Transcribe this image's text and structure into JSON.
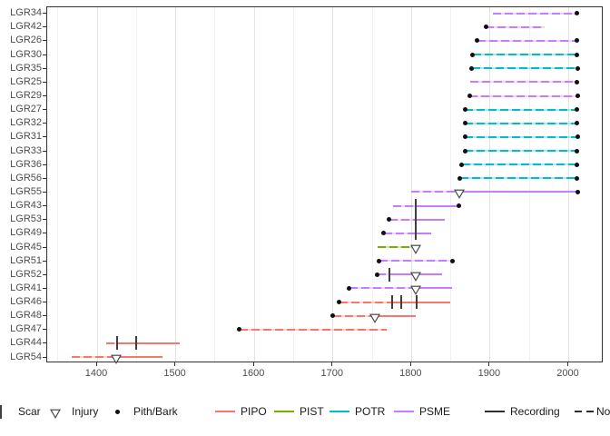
{
  "chart_data": {
    "type": "line",
    "subtype": "fire-history-demography",
    "title": "",
    "xlabel": "",
    "ylabel": "",
    "x_axis": {
      "breaks": [
        1400,
        1500,
        1600,
        1700,
        1800,
        1900,
        2000
      ],
      "labels": [
        "1400",
        "1500",
        "1600",
        "1700",
        "1800",
        "1900",
        "2000"
      ],
      "minor_step": 50,
      "range": [
        1336,
        2043
      ]
    },
    "species_colors": {
      "PIPO": "#F8766D",
      "PIST": "#7CAE00",
      "POTR": "#00BFC4",
      "PSME": "#C77CFF"
    },
    "marker_color": "#3f3f3f",
    "series": [
      {
        "label": "LGR34",
        "species": "PSME",
        "pith": null,
        "bark": 2011,
        "scars": [],
        "injuries": [],
        "segments": [
          {
            "start": 1905,
            "end": 2011,
            "recording": false
          }
        ]
      },
      {
        "label": "LGR42",
        "species": "PSME",
        "pith": 1896,
        "bark": null,
        "scars": [],
        "injuries": [],
        "segments": [
          {
            "start": 1896,
            "end": 1971,
            "recording": false
          }
        ]
      },
      {
        "label": "LGR26",
        "species": "PSME",
        "pith": 1885,
        "bark": 2011,
        "scars": [],
        "injuries": [],
        "segments": [
          {
            "start": 1885,
            "end": 2011,
            "recording": false
          }
        ]
      },
      {
        "label": "LGR30",
        "species": "POTR",
        "pith": 1879,
        "bark": 2011,
        "scars": [],
        "injuries": [],
        "segments": [
          {
            "start": 1879,
            "end": 2011,
            "recording": false
          }
        ]
      },
      {
        "label": "LGR35",
        "species": "POTR",
        "pith": 1878,
        "bark": 2013,
        "scars": [],
        "injuries": [],
        "segments": [
          {
            "start": 1878,
            "end": 2013,
            "recording": false
          }
        ]
      },
      {
        "label": "LGR25",
        "species": "PSME",
        "pith": null,
        "bark": 2011,
        "scars": [],
        "injuries": [],
        "segments": [
          {
            "start": 1876,
            "end": 2011,
            "recording": false
          }
        ]
      },
      {
        "label": "LGR29",
        "species": "PSME",
        "pith": 1875,
        "bark": 2013,
        "scars": [],
        "injuries": [],
        "segments": [
          {
            "start": 1875,
            "end": 2013,
            "recording": false
          }
        ]
      },
      {
        "label": "LGR27",
        "species": "POTR",
        "pith": 1869,
        "bark": 2011,
        "scars": [],
        "injuries": [],
        "segments": [
          {
            "start": 1869,
            "end": 2011,
            "recording": false
          }
        ]
      },
      {
        "label": "LGR32",
        "species": "POTR",
        "pith": 1869,
        "bark": 2011,
        "scars": [],
        "injuries": [],
        "segments": [
          {
            "start": 1869,
            "end": 2011,
            "recording": false
          }
        ]
      },
      {
        "label": "LGR31",
        "species": "POTR",
        "pith": 1869,
        "bark": 2013,
        "scars": [],
        "injuries": [],
        "segments": [
          {
            "start": 1869,
            "end": 2013,
            "recording": false
          }
        ]
      },
      {
        "label": "LGR33",
        "species": "POTR",
        "pith": 1869,
        "bark": 2011,
        "scars": [],
        "injuries": [],
        "segments": [
          {
            "start": 1869,
            "end": 2011,
            "recording": false
          }
        ]
      },
      {
        "label": "LGR36",
        "species": "POTR",
        "pith": 1865,
        "bark": 2011,
        "scars": [],
        "injuries": [],
        "segments": [
          {
            "start": 1865,
            "end": 2011,
            "recording": false
          }
        ]
      },
      {
        "label": "LGR56",
        "species": "POTR",
        "pith": 1863,
        "bark": 2011,
        "scars": [],
        "injuries": [],
        "segments": [
          {
            "start": 1863,
            "end": 2011,
            "recording": false
          }
        ]
      },
      {
        "label": "LGR55",
        "species": "PSME",
        "pith": null,
        "bark": 2013,
        "scars": [],
        "injuries": [
          1862
        ],
        "segments": [
          {
            "start": 1801,
            "end": 1862,
            "recording": false
          },
          {
            "start": 1862,
            "end": 2013,
            "recording": true
          }
        ]
      },
      {
        "label": "LGR43",
        "species": "PSME",
        "pith": null,
        "bark": 1861,
        "scars": [
          1807
        ],
        "injuries": [],
        "segments": [
          {
            "start": 1778,
            "end": 1807,
            "recording": false
          },
          {
            "start": 1807,
            "end": 1861,
            "recording": true
          }
        ]
      },
      {
        "label": "LGR53",
        "species": "PSME",
        "pith": 1773,
        "bark": null,
        "scars": [
          1807
        ],
        "injuries": [],
        "segments": [
          {
            "start": 1773,
            "end": 1807,
            "recording": false
          },
          {
            "start": 1807,
            "end": 1844,
            "recording": true
          }
        ]
      },
      {
        "label": "LGR49",
        "species": "PSME",
        "pith": 1766,
        "bark": null,
        "scars": [
          1807
        ],
        "injuries": [],
        "segments": [
          {
            "start": 1766,
            "end": 1807,
            "recording": false
          },
          {
            "start": 1807,
            "end": 1826,
            "recording": true
          }
        ]
      },
      {
        "label": "LGR45",
        "species": "PIST",
        "pith": null,
        "bark": null,
        "scars": [],
        "injuries": [
          1806
        ],
        "segments": [
          {
            "start": 1758,
            "end": 1806,
            "recording": false
          }
        ]
      },
      {
        "label": "LGR51",
        "species": "PSME",
        "pith": 1760,
        "bark": 1853,
        "scars": [],
        "injuries": [],
        "segments": [
          {
            "start": 1760,
            "end": 1853,
            "recording": false
          }
        ]
      },
      {
        "label": "LGR52",
        "species": "PSME",
        "pith": 1758,
        "bark": null,
        "scars": [
          1773
        ],
        "injuries": [
          1806
        ],
        "segments": [
          {
            "start": 1758,
            "end": 1773,
            "recording": false
          },
          {
            "start": 1773,
            "end": 1840,
            "recording": true
          }
        ]
      },
      {
        "label": "LGR41",
        "species": "PSME",
        "pith": 1722,
        "bark": null,
        "scars": [],
        "injuries": [
          1807
        ],
        "segments": [
          {
            "start": 1722,
            "end": 1807,
            "recording": false
          },
          {
            "start": 1807,
            "end": 1853,
            "recording": true
          }
        ]
      },
      {
        "label": "LGR46",
        "species": "PIPO",
        "pith": 1709,
        "bark": null,
        "scars": [
          1776,
          1788,
          1808
        ],
        "injuries": [],
        "segments": [
          {
            "start": 1709,
            "end": 1776,
            "recording": false
          },
          {
            "start": 1776,
            "end": 1851,
            "recording": true
          }
        ]
      },
      {
        "label": "LGR48",
        "species": "PIPO",
        "pith": 1701,
        "bark": null,
        "scars": [],
        "injuries": [
          1754
        ],
        "segments": [
          {
            "start": 1701,
            "end": 1754,
            "recording": false
          },
          {
            "start": 1754,
            "end": 1806,
            "recording": true
          }
        ]
      },
      {
        "label": "LGR47",
        "species": "PIPO",
        "pith": 1582,
        "bark": null,
        "scars": [],
        "injuries": [],
        "segments": [
          {
            "start": 1582,
            "end": 1770,
            "recording": false
          }
        ]
      },
      {
        "label": "LGR44",
        "species": "PIPO",
        "pith": null,
        "bark": null,
        "scars": [
          1426,
          1451
        ],
        "injuries": [],
        "segments": [
          {
            "start": 1413,
            "end": 1426,
            "recording": false
          },
          {
            "start": 1426,
            "end": 1506,
            "recording": true
          }
        ]
      },
      {
        "label": "LGR54",
        "species": "PIPO",
        "pith": null,
        "bark": null,
        "scars": [],
        "injuries": [
          1425
        ],
        "segments": [
          {
            "start": 1369,
            "end": 1425,
            "recording": false
          },
          {
            "start": 1425,
            "end": 1484,
            "recording": true
          }
        ]
      }
    ]
  },
  "legend": {
    "markers": [
      {
        "icon": "scar",
        "label": "Scar"
      },
      {
        "icon": "injury",
        "label": "Injury"
      },
      {
        "icon": "dot",
        "label": "Pith/Bark"
      }
    ],
    "species": [
      {
        "label": "PIPO",
        "color": "#F8766D"
      },
      {
        "label": "PIST",
        "color": "#7CAE00"
      },
      {
        "label": "POTR",
        "color": "#00BFC4"
      },
      {
        "label": "PSME",
        "color": "#C77CFF"
      }
    ],
    "linetypes": [
      {
        "label": "Recording",
        "style": "solid",
        "color": "#2e2e2e"
      },
      {
        "label": "Non-recording",
        "style": "dashed",
        "color": "#2e2e2e"
      }
    ]
  }
}
